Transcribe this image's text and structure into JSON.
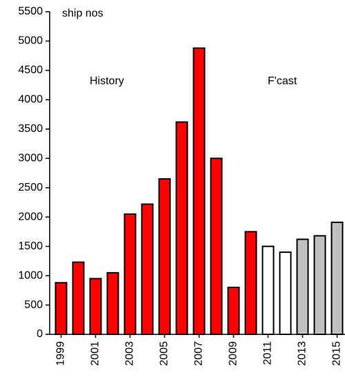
{
  "chart_data": {
    "type": "bar",
    "annotations": [
      "ship nos",
      "History",
      "F'cast"
    ],
    "categories": [
      "1999",
      null,
      "2001",
      null,
      "2003",
      null,
      "2005",
      null,
      "2007",
      null,
      "2009",
      null,
      "2011",
      null,
      "2013",
      null,
      "2015"
    ],
    "values": [
      880,
      1230,
      950,
      1050,
      2050,
      2220,
      2650,
      3620,
      4880,
      3000,
      800,
      1750,
      1500,
      1400,
      1620,
      1680,
      1910
    ],
    "colors": [
      "#ff0000",
      "#ff0000",
      "#ff0000",
      "#ff0000",
      "#ff0000",
      "#ff0000",
      "#ff0000",
      "#ff0000",
      "#ff0000",
      "#ff0000",
      "#ff0000",
      "#ff0000",
      "#ffffff",
      "#ffffff",
      "#c0c0c0",
      "#c0c0c0",
      "#c0c0c0"
    ],
    "ylim": [
      0,
      5500
    ],
    "yticks": [
      0,
      500,
      1000,
      1500,
      2000,
      2500,
      3000,
      3500,
      4000,
      4500,
      5000,
      5500
    ],
    "grid": false
  }
}
